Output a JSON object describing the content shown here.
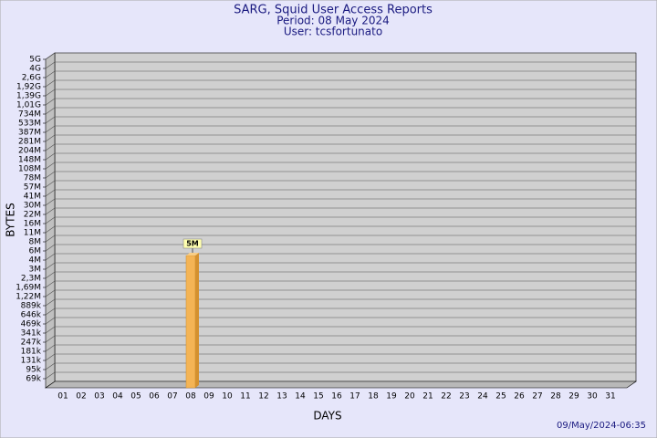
{
  "chart_data": {
    "type": "bar",
    "title": "SARG, Squid User Access Reports",
    "subtitle": "Period: 08 May 2024",
    "user": "User: tcsfortunato",
    "ylabel": "BYTES",
    "xlabel": "DAYS",
    "footer": "09/May/2024-06:35",
    "categories": [
      "01",
      "02",
      "03",
      "04",
      "05",
      "06",
      "07",
      "08",
      "09",
      "10",
      "11",
      "12",
      "13",
      "14",
      "15",
      "16",
      "17",
      "18",
      "19",
      "20",
      "21",
      "22",
      "23",
      "24",
      "25",
      "26",
      "27",
      "28",
      "29",
      "30",
      "31"
    ],
    "values": [
      null,
      null,
      null,
      null,
      null,
      null,
      null,
      5000000,
      null,
      null,
      null,
      null,
      null,
      null,
      null,
      null,
      null,
      null,
      null,
      null,
      null,
      null,
      null,
      null,
      null,
      null,
      null,
      null,
      null,
      null,
      null
    ],
    "value_labels": [
      null,
      null,
      null,
      null,
      null,
      null,
      null,
      "5M",
      null,
      null,
      null,
      null,
      null,
      null,
      null,
      null,
      null,
      null,
      null,
      null,
      null,
      null,
      null,
      null,
      null,
      null,
      null,
      null,
      null,
      null,
      null
    ],
    "color": "#f4b455",
    "grid": true,
    "ylim": [
      0,
      5000000000
    ],
    "yticks": [
      {
        "value": 5000000000,
        "label": "5G"
      },
      {
        "value": 4000000000,
        "label": "4G"
      },
      {
        "value": 2600000000,
        "label": "2,6G"
      },
      {
        "value": 1920000000,
        "label": "1,92G"
      },
      {
        "value": 1390000000,
        "label": "1,39G"
      },
      {
        "value": 1010000000,
        "label": "1,01G"
      },
      {
        "value": 734000000,
        "label": "734M"
      },
      {
        "value": 533000000,
        "label": "533M"
      },
      {
        "value": 387000000,
        "label": "387M"
      },
      {
        "value": 281000000,
        "label": "281M"
      },
      {
        "value": 204000000,
        "label": "204M"
      },
      {
        "value": 148000000,
        "label": "148M"
      },
      {
        "value": 108000000,
        "label": "108M"
      },
      {
        "value": 78000000,
        "label": "78M"
      },
      {
        "value": 57000000,
        "label": "57M"
      },
      {
        "value": 41000000,
        "label": "41M"
      },
      {
        "value": 30000000,
        "label": "30M"
      },
      {
        "value": 22000000,
        "label": "22M"
      },
      {
        "value": 16000000,
        "label": "16M"
      },
      {
        "value": 11000000,
        "label": "11M"
      },
      {
        "value": 8000000,
        "label": "8M"
      },
      {
        "value": 6000000,
        "label": "6M"
      },
      {
        "value": 4000000,
        "label": "4M"
      },
      {
        "value": 3000000,
        "label": "3M"
      },
      {
        "value": 2300000,
        "label": "2,3M"
      },
      {
        "value": 1690000,
        "label": "1,69M"
      },
      {
        "value": 1220000,
        "label": "1,22M"
      },
      {
        "value": 889000,
        "label": "889k"
      },
      {
        "value": 646000,
        "label": "646k"
      },
      {
        "value": 469000,
        "label": "469k"
      },
      {
        "value": 341000,
        "label": "341k"
      },
      {
        "value": 247000,
        "label": "247k"
      },
      {
        "value": 181000,
        "label": "181k"
      },
      {
        "value": 131000,
        "label": "131k"
      },
      {
        "value": 95000,
        "label": "95k"
      },
      {
        "value": 69000,
        "label": "69k"
      }
    ]
  }
}
